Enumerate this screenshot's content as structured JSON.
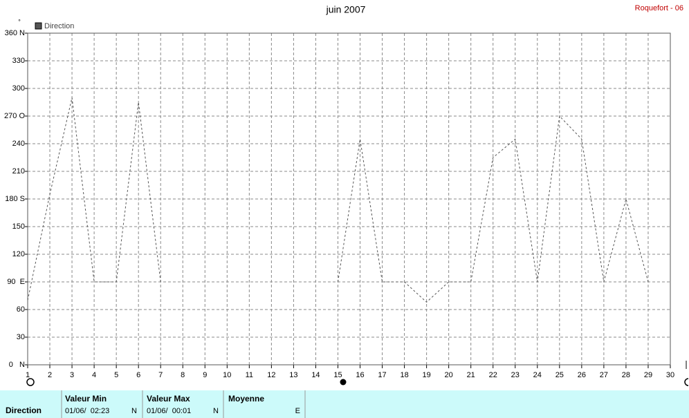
{
  "chart_data": {
    "type": "line",
    "title": "juin 2007",
    "subtitle": "Roquefort - 06",
    "y_unit": "°",
    "x": [
      1,
      2,
      3,
      4,
      5,
      6,
      7,
      8,
      9,
      10,
      11,
      12,
      13,
      14,
      15,
      16,
      17,
      18,
      19,
      20,
      21,
      22,
      23,
      24,
      25,
      26,
      27,
      28,
      29,
      30
    ],
    "xlim": [
      1,
      30
    ],
    "xticks": [
      1,
      2,
      3,
      4,
      5,
      6,
      7,
      8,
      9,
      10,
      11,
      12,
      13,
      14,
      15,
      16,
      17,
      18,
      19,
      20,
      21,
      22,
      23,
      24,
      25,
      26,
      27,
      28,
      29,
      30
    ],
    "ylim": [
      0,
      360
    ],
    "yticks": [
      {
        "value": 0,
        "label": "0   N"
      },
      30,
      60,
      {
        "value": 90,
        "label": "90  E"
      },
      120,
      150,
      {
        "value": 180,
        "label": "180 S"
      },
      210,
      240,
      {
        "value": 270,
        "label": "270 O"
      },
      300,
      330,
      {
        "value": 360,
        "label": "360 N"
      }
    ],
    "grid": true,
    "legend": "top-left",
    "series": [
      {
        "name": "Direction",
        "color": "#555555",
        "values": [
          70,
          185,
          290,
          90,
          90,
          285,
          90,
          null,
          null,
          null,
          null,
          null,
          null,
          null,
          90,
          245,
          90,
          90,
          68,
          90,
          90,
          225,
          245,
          90,
          270,
          245,
          90,
          180,
          90,
          null
        ]
      }
    ]
  },
  "table": {
    "row_header": "Direction",
    "columns": [
      {
        "title": "Valeur Min",
        "date": "01/06/  02:23",
        "value": "N"
      },
      {
        "title": "Valeur Max",
        "date": "01/06/  00:01",
        "value": "N"
      },
      {
        "title": "Moyenne",
        "value": "E"
      }
    ]
  }
}
